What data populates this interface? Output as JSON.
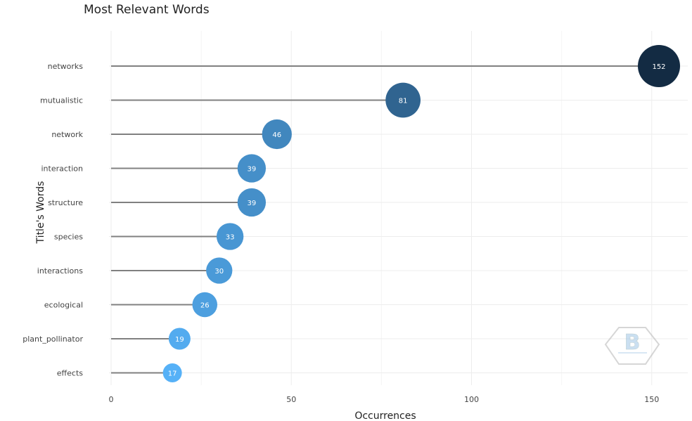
{
  "chart_data": {
    "type": "lollipop",
    "title": "Most Relevant Words",
    "xlabel": "Occurrences",
    "ylabel": "Title's Words",
    "categories": [
      "networks",
      "mutualistic",
      "network",
      "interaction",
      "structure",
      "species",
      "interactions",
      "ecological",
      "plant_pollinator",
      "effects"
    ],
    "values": [
      152,
      81,
      46,
      39,
      39,
      33,
      30,
      26,
      19,
      17
    ],
    "xlim": [
      0,
      160
    ],
    "xticks": [
      0,
      50,
      100,
      150
    ],
    "grid": true,
    "colors": {
      "stem": "#808080",
      "gradient_low": "#56B1F7",
      "gradient_high": "#132B43",
      "label": "#ffffff",
      "grid": "#ededed"
    },
    "watermark": "logo"
  }
}
